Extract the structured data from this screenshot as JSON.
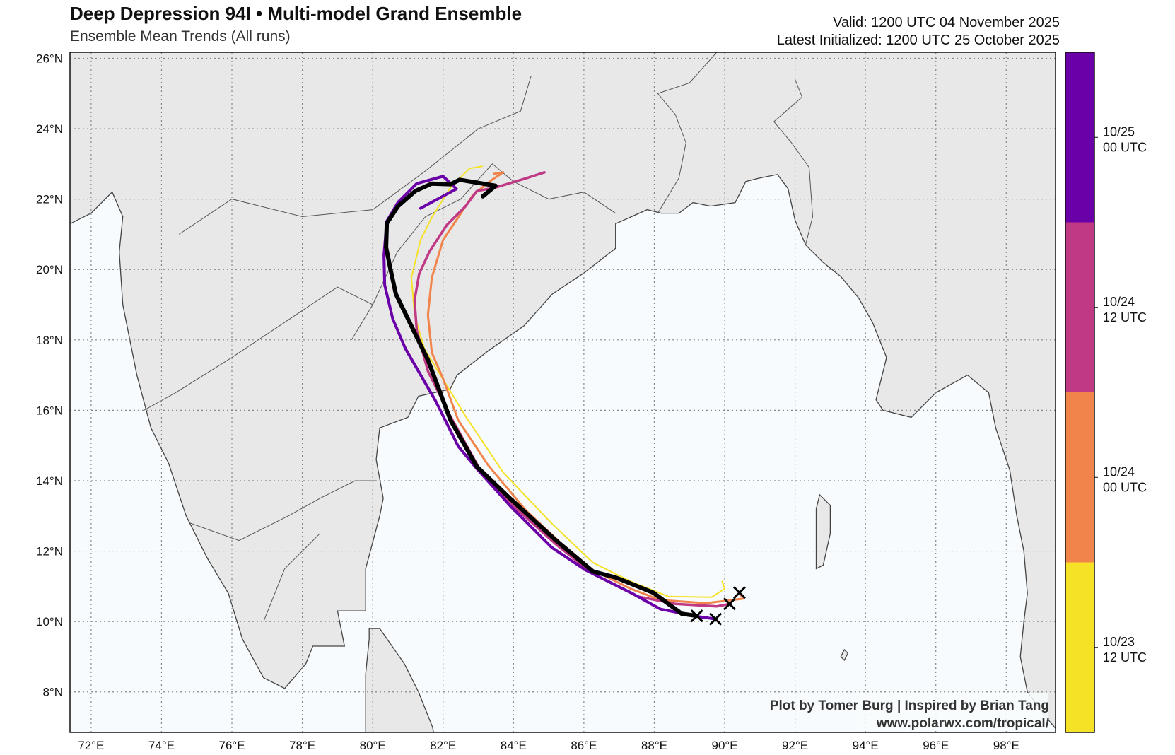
{
  "header": {
    "title": "Deep Depression 94I • Multi-model Grand Ensemble",
    "subtitle": "Ensemble Mean Trends (All runs)",
    "valid": "Valid: 1200 UTC 04 November 2025",
    "initialized": "Latest Initialized: 1200 UTC 25 October 2025"
  },
  "credits": {
    "line1": "Plot by Tomer Burg | Inspired by Brian Tang",
    "line2": "www.polarwx.com/tropical/"
  },
  "colors": {
    "land": "#e8e8e8",
    "ocean": "#f8fbfd",
    "border": "#444444",
    "mean": "#000000"
  },
  "chart_data": {
    "type": "map-track",
    "lon_range": [
      71.4,
      99.4
    ],
    "lat_range": [
      6.85,
      26.17
    ],
    "lon_ticks": [
      "72°E",
      "74°E",
      "76°E",
      "78°E",
      "80°E",
      "82°E",
      "84°E",
      "86°E",
      "88°E",
      "90°E",
      "92°E",
      "94°E",
      "96°E",
      "98°E"
    ],
    "lat_ticks": [
      "8°N",
      "10°N",
      "12°N",
      "14°N",
      "16°N",
      "18°N",
      "20°N",
      "22°N",
      "24°N",
      "26°N"
    ],
    "lon_tick_values": [
      72,
      74,
      76,
      78,
      80,
      82,
      84,
      86,
      88,
      90,
      92,
      94,
      96,
      98
    ],
    "lat_tick_values": [
      8,
      10,
      12,
      14,
      16,
      18,
      20,
      22,
      24,
      26
    ],
    "colorbar": [
      {
        "label1": "10/25",
        "label2": "00 UTC",
        "color": "#6a00a8"
      },
      {
        "label1": "10/24",
        "label2": "12 UTC",
        "color": "#bf3984"
      },
      {
        "label1": "10/24",
        "label2": "00 UTC",
        "color": "#f1844b"
      },
      {
        "label1": "10/23",
        "label2": "12 UTC",
        "color": "#f5e226"
      }
    ],
    "tracks": [
      {
        "name": "10/23 12 UTC",
        "color": "#f5e226",
        "width": 2,
        "points": [
          [
            89.93,
            11.14
          ],
          [
            90.0,
            10.93
          ],
          [
            89.63,
            10.69
          ],
          [
            88.4,
            10.71
          ],
          [
            87.33,
            11.14
          ],
          [
            86.26,
            11.67
          ],
          [
            85.09,
            12.78
          ],
          [
            83.71,
            14.23
          ],
          [
            82.64,
            15.83
          ],
          [
            81.79,
            17.22
          ],
          [
            81.47,
            17.75
          ],
          [
            81.19,
            18.71
          ],
          [
            81.1,
            19.77
          ],
          [
            81.36,
            20.84
          ],
          [
            81.68,
            21.48
          ],
          [
            82.21,
            22.33
          ],
          [
            82.75,
            22.87
          ],
          [
            83.11,
            22.93
          ]
        ]
      },
      {
        "name": "10/24 00 UTC",
        "color": "#f1844b",
        "width": 3,
        "points": [
          [
            90.42,
            10.82
          ],
          [
            90.53,
            10.65
          ],
          [
            90.21,
            10.61
          ],
          [
            89.46,
            10.52
          ],
          [
            88.18,
            10.61
          ],
          [
            87.33,
            10.93
          ],
          [
            86.26,
            11.46
          ],
          [
            85.3,
            12.27
          ],
          [
            84.35,
            13.16
          ],
          [
            83.28,
            14.44
          ],
          [
            82.43,
            15.72
          ],
          [
            82.0,
            16.9
          ],
          [
            81.68,
            17.64
          ],
          [
            81.57,
            18.71
          ],
          [
            81.68,
            19.77
          ],
          [
            82.0,
            20.84
          ],
          [
            82.43,
            21.48
          ],
          [
            82.85,
            22.12
          ],
          [
            83.39,
            22.55
          ],
          [
            83.71,
            22.76
          ],
          [
            83.45,
            22.72
          ]
        ]
      },
      {
        "name": "10/24 12 UTC",
        "color": "#bf3984",
        "width": 3.5,
        "points": [
          [
            90.14,
            10.5
          ],
          [
            89.78,
            10.43
          ],
          [
            88.61,
            10.5
          ],
          [
            87.54,
            10.71
          ],
          [
            86.26,
            11.35
          ],
          [
            85.2,
            12.2
          ],
          [
            84.13,
            13.16
          ],
          [
            83.07,
            14.27
          ],
          [
            82.21,
            15.83
          ],
          [
            81.57,
            17.11
          ],
          [
            81.25,
            18.28
          ],
          [
            81.19,
            19.13
          ],
          [
            81.32,
            19.88
          ],
          [
            81.62,
            20.52
          ],
          [
            82.11,
            21.27
          ],
          [
            82.64,
            21.8
          ],
          [
            82.96,
            22.23
          ],
          [
            83.49,
            22.33
          ],
          [
            84.35,
            22.59
          ],
          [
            84.88,
            22.76
          ]
        ]
      },
      {
        "name": "10/25 00 UTC",
        "color": "#6a00a8",
        "width": 4,
        "points": [
          [
            89.74,
            10.07
          ],
          [
            89.25,
            10.14
          ],
          [
            88.18,
            10.35
          ],
          [
            87.33,
            10.82
          ],
          [
            86.05,
            11.46
          ],
          [
            85.09,
            12.1
          ],
          [
            83.92,
            13.27
          ],
          [
            82.96,
            14.34
          ],
          [
            82.43,
            14.98
          ],
          [
            81.79,
            16.26
          ],
          [
            80.93,
            17.75
          ],
          [
            80.57,
            18.6
          ],
          [
            80.34,
            19.56
          ],
          [
            80.32,
            20.41
          ],
          [
            80.4,
            21.37
          ],
          [
            80.72,
            21.91
          ],
          [
            81.25,
            22.44
          ],
          [
            82.0,
            22.65
          ],
          [
            82.38,
            22.29
          ],
          [
            81.36,
            21.74
          ]
        ]
      },
      {
        "name": "Mean",
        "color": "#000000",
        "width": 6,
        "points": [
          [
            89.21,
            10.16
          ],
          [
            88.78,
            10.22
          ],
          [
            87.97,
            10.82
          ],
          [
            86.9,
            11.25
          ],
          [
            86.26,
            11.42
          ],
          [
            85.2,
            12.31
          ],
          [
            83.92,
            13.48
          ],
          [
            82.96,
            14.4
          ],
          [
            82.21,
            15.72
          ],
          [
            81.57,
            17.43
          ],
          [
            80.66,
            19.3
          ],
          [
            80.51,
            19.99
          ],
          [
            80.38,
            20.63
          ],
          [
            80.4,
            21.31
          ],
          [
            80.72,
            21.8
          ],
          [
            81.21,
            22.23
          ],
          [
            81.68,
            22.44
          ],
          [
            82.21,
            22.42
          ],
          [
            82.47,
            22.55
          ],
          [
            83.49,
            22.38
          ],
          [
            83.13,
            22.08
          ]
        ]
      }
    ],
    "x_markers": [
      [
        89.21,
        10.16
      ],
      [
        89.74,
        10.07
      ],
      [
        90.14,
        10.5
      ],
      [
        90.42,
        10.82
      ]
    ]
  }
}
